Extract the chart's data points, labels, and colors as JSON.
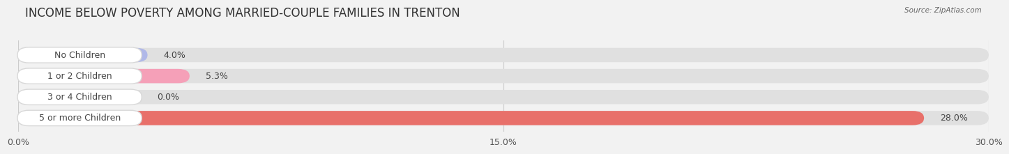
{
  "title": "INCOME BELOW POVERTY AMONG MARRIED-COUPLE FAMILIES IN TRENTON",
  "source": "Source: ZipAtlas.com",
  "categories": [
    "No Children",
    "1 or 2 Children",
    "3 or 4 Children",
    "5 or more Children"
  ],
  "values": [
    4.0,
    5.3,
    0.0,
    28.0
  ],
  "bar_colors": [
    "#b0b8e8",
    "#f5a0b8",
    "#f5c890",
    "#e8706a"
  ],
  "xmax": 30.0,
  "xticks": [
    0.0,
    15.0,
    30.0
  ],
  "xtick_labels": [
    "0.0%",
    "15.0%",
    "30.0%"
  ],
  "background_color": "#f2f2f2",
  "bar_bg_color": "#e0e0e0",
  "title_fontsize": 12,
  "tick_fontsize": 9,
  "label_fontsize": 9,
  "value_fontsize": 9
}
